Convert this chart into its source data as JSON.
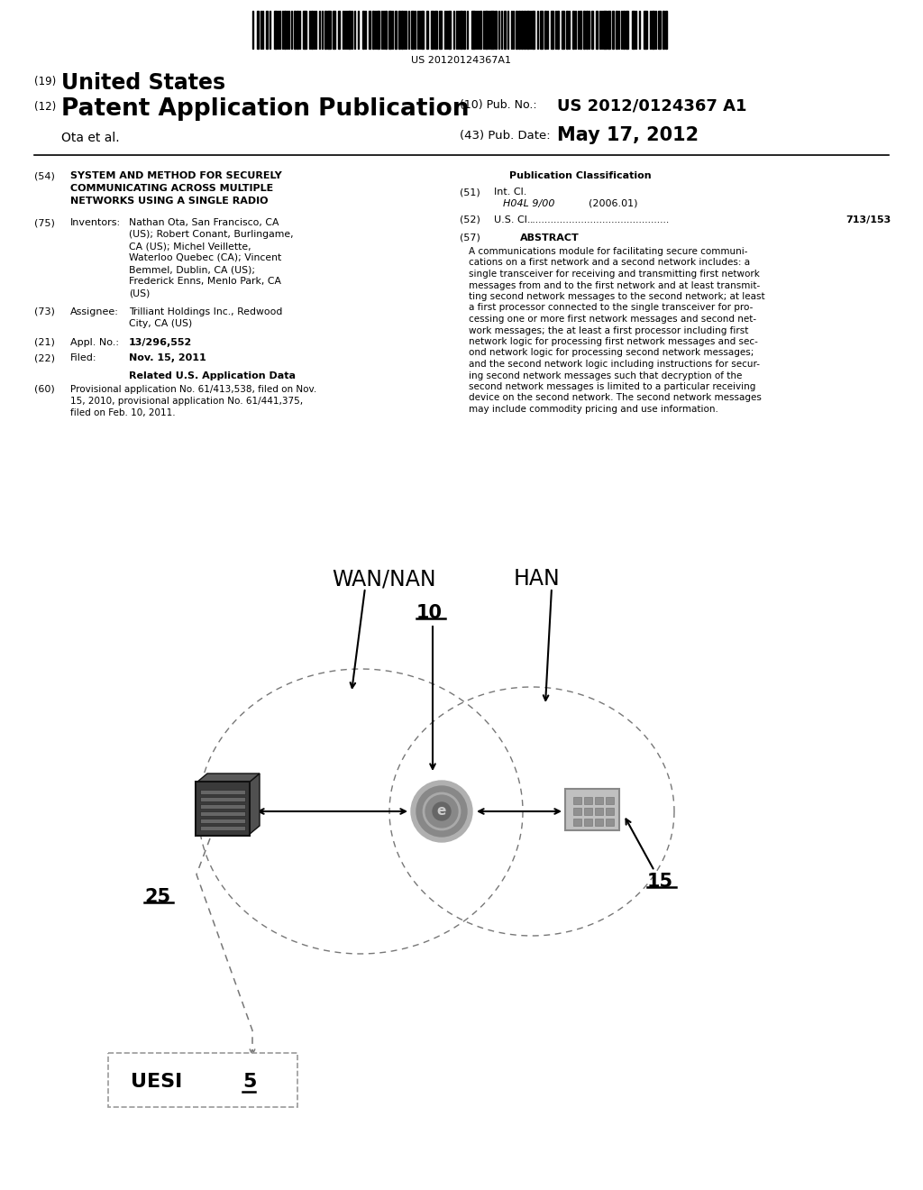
{
  "bg_color": "#ffffff",
  "barcode_text": "US 20120124367A1",
  "title_19": "(19)",
  "title_19_bold": "United States",
  "title_12": "(12)",
  "title_12_bold": "Patent Application Publication",
  "pub_no_label": "(10) Pub. No.:",
  "pub_no_value": "US 2012/0124367 A1",
  "pub_date_label": "(43) Pub. Date:",
  "pub_date_value": "May 17, 2012",
  "inventor_line": "Ota et al.",
  "field_54_label": "(54)",
  "field_54_text": "SYSTEM AND METHOD FOR SECURELY\nCOMMUNICATING ACROSS MULTIPLE\nNETWORKS USING A SINGLE RADIO",
  "field_75_label": "(75)",
  "field_75_title": "Inventors:",
  "field_75_text": "Nathan Ota, San Francisco, CA\n(US); Robert Conant, Burlingame,\nCA (US); Michel Veillette,\nWaterloo Quebec (CA); Vincent\nBemmel, Dublin, CA (US);\nFrederick Enns, Menlo Park, CA\n(US)",
  "field_73_label": "(73)",
  "field_73_title": "Assignee:",
  "field_73_text": "Trilliant Holdings Inc., Redwood\nCity, CA (US)",
  "field_21_label": "(21)",
  "field_21_title": "Appl. No.:",
  "field_21_value": "13/296,552",
  "field_22_label": "(22)",
  "field_22_title": "Filed:",
  "field_22_value": "Nov. 15, 2011",
  "related_header": "Related U.S. Application Data",
  "field_60_label": "(60)",
  "field_60_text": "Provisional application No. 61/413,538, filed on Nov.\n15, 2010, provisional application No. 61/441,375,\nfiled on Feb. 10, 2011.",
  "pub_class_header": "Publication Classification",
  "field_51_label": "(51)",
  "field_51_title": "Int. Cl.",
  "field_51_class": "H04L 9/00",
  "field_51_year": "(2006.01)",
  "field_52_label": "(52)",
  "field_52_title": "U.S. Cl.",
  "field_52_value": "713/153",
  "field_57_label": "(57)",
  "field_57_title": "ABSTRACT",
  "abstract_text": "A communications module for facilitating secure communi-\ncations on a first network and a second network includes: a\nsingle transceiver for receiving and transmitting first network\nmessages from and to the first network and at least transmit-\nting second network messages to the second network; at least\na first processor connected to the single transceiver for pro-\ncessing one or more first network messages and second net-\nwork messages; the at least a first processor including first\nnetwork logic for processing first network messages and sec-\nond network logic for processing second network messages;\nand the second network logic including instructions for secur-\ning second network messages such that decryption of the\nsecond network messages is limited to a particular receiving\ndevice on the second network. The second network messages\nmay include commodity pricing and use information.",
  "diagram_wan_nan": "WAN/NAN",
  "diagram_han": "HAN",
  "diagram_label_10": "10",
  "diagram_label_15": "15",
  "diagram_label_25": "25",
  "diagram_label_uesi": "UESI",
  "diagram_label_5": "5"
}
